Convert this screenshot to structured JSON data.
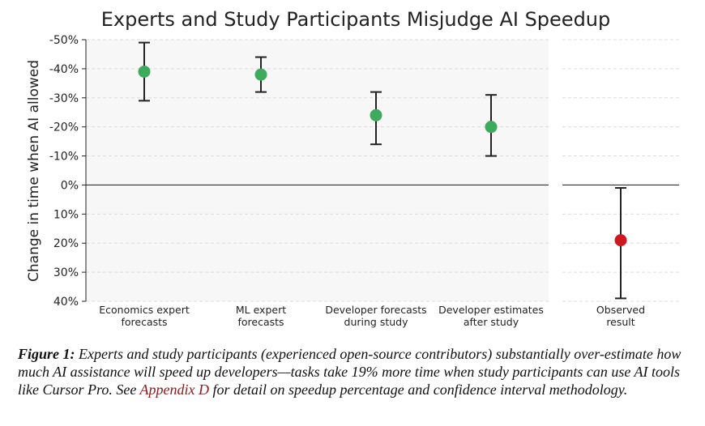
{
  "chart_data": {
    "type": "errorbar",
    "title": "Experts and Study Participants Misjudge AI Speedup",
    "ylabel": "Change in time when AI allowed",
    "ylim": [
      -50,
      40
    ],
    "yticks": [
      -50,
      -40,
      -30,
      -20,
      -10,
      0,
      10,
      20,
      30,
      40
    ],
    "ytick_labels": [
      "-50%",
      "-40%",
      "-30%",
      "-20%",
      "-10%",
      "0%",
      "10%",
      "20%",
      "30%",
      "40%"
    ],
    "grid": true,
    "panels": [
      {
        "name": "forecasts",
        "categories": [
          [
            "Economics expert",
            "forecasts"
          ],
          [
            "ML expert",
            "forecasts"
          ],
          [
            "Developer forecasts",
            "during study"
          ],
          [
            "Developer estimates",
            "after study"
          ]
        ],
        "values": [
          -39,
          -38,
          -24,
          -20
        ],
        "ci_low": [
          -49,
          -44,
          -32,
          -31
        ],
        "ci_high": [
          -29,
          -32,
          -14,
          -10
        ],
        "color": "#3daa5c"
      },
      {
        "name": "observed",
        "categories": [
          [
            "Observed",
            "result"
          ]
        ],
        "values": [
          19
        ],
        "ci_low": [
          1
        ],
        "ci_high": [
          39
        ],
        "color": "#d0161f"
      }
    ]
  },
  "caption": {
    "label": "Figure 1:",
    "text_before": " Experts and study participants (experienced open-source contributors) substantially over-estimate how much AI assistance will speed up developers—tasks take 19% more time when study participants can use AI tools like Cursor Pro. See ",
    "link": "Appendix D",
    "text_after": " for detail on speedup percentage and confidence interval methodology."
  }
}
